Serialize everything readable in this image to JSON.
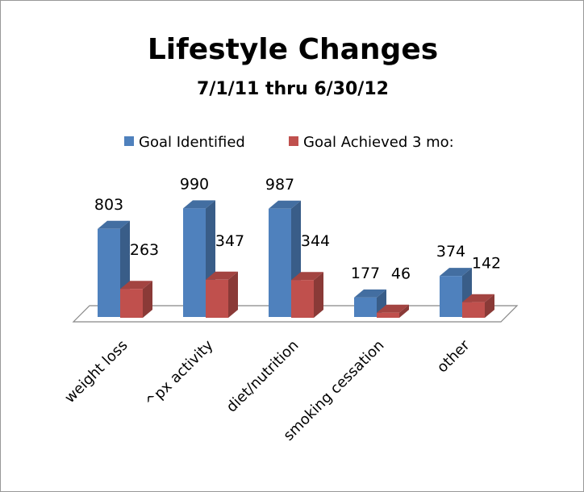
{
  "chart_data": {
    "type": "bar3d",
    "title": "Lifestyle Changes",
    "subtitle": "7/1/11 thru 6/30/12",
    "categories": [
      "weight loss",
      "^px activity",
      "diet/nutrition",
      "smoking cessation",
      "other"
    ],
    "series": [
      {
        "name": "Goal Identified",
        "color": "#4f81bd",
        "values": [
          803,
          990,
          987,
          177,
          374
        ]
      },
      {
        "name": "Goal Achieved 3 mo:",
        "color": "#c0504d",
        "values": [
          263,
          347,
          344,
          46,
          142
        ]
      }
    ],
    "legend": "top"
  }
}
